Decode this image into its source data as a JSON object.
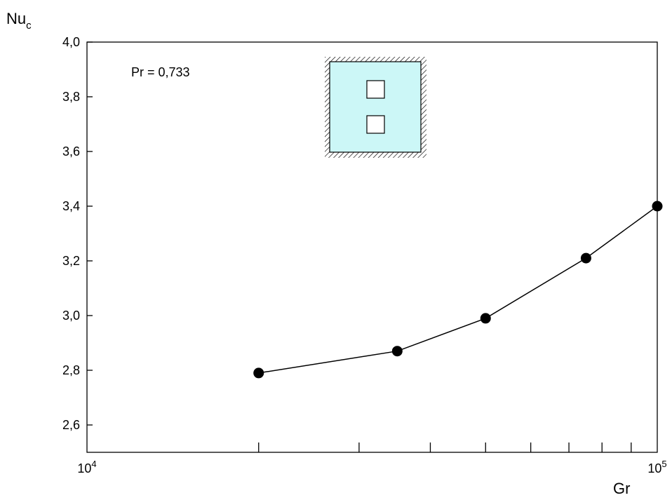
{
  "chart_data": {
    "type": "line",
    "x_scale": "log",
    "xlim": [
      10000,
      100000
    ],
    "ylim": [
      2.5,
      4.0
    ],
    "xlabel": "Gr",
    "ylabel": {
      "main": "Nu",
      "sub": "c"
    },
    "x_tick_labels": [
      {
        "value": 10000,
        "base": "10",
        "exp": "4"
      },
      {
        "value": 100000,
        "base": "10",
        "exp": "5"
      }
    ],
    "x_minor_ticks": [
      20000,
      30000,
      40000,
      50000,
      60000,
      70000,
      80000,
      90000
    ],
    "y_ticks": [
      {
        "value": 2.6,
        "label": "2,6"
      },
      {
        "value": 2.8,
        "label": "2,8"
      },
      {
        "value": 3.0,
        "label": "3,0"
      },
      {
        "value": 3.2,
        "label": "3,2"
      },
      {
        "value": 3.4,
        "label": "3,4"
      },
      {
        "value": 3.6,
        "label": "3,6"
      },
      {
        "value": 3.8,
        "label": "3,8"
      },
      {
        "value": 4.0,
        "label": "4,0"
      }
    ],
    "annotation": "Pr = 0,733",
    "series": [
      {
        "x": [
          20000,
          35000,
          50000,
          75000,
          100000
        ],
        "y": [
          2.79,
          2.87,
          2.99,
          3.21,
          3.4
        ]
      }
    ],
    "grid": false,
    "inset_diagram": "cavity-with-two-square-blocks"
  },
  "colors": {
    "line": "#000000",
    "marker": "#000000",
    "cavity_fill": "#ccf7f7",
    "hatch": "#000000"
  }
}
